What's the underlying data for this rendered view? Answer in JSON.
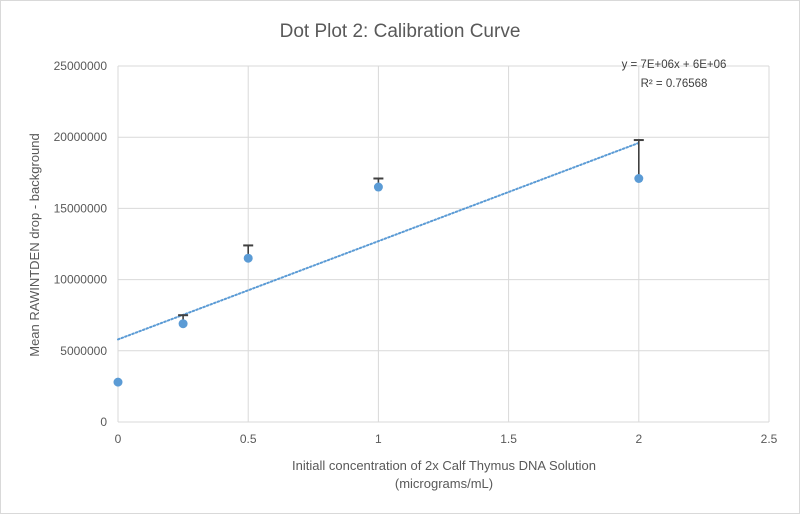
{
  "chart_data": {
    "type": "scatter",
    "title": "Dot Plot 2: Calibration Curve",
    "xlabel_line1": "Initiall concentration of 2x Calf Thymus DNA Solution",
    "xlabel_line2": "(micrograms/mL)",
    "ylabel": "Mean RAWINTDEN drop - background",
    "xlim": [
      0,
      2.5
    ],
    "ylim": [
      0,
      25000000
    ],
    "x_ticks": [
      0,
      0.5,
      1,
      1.5,
      2,
      2.5
    ],
    "x_tick_labels": [
      "0",
      "0.5",
      "1",
      "1.5",
      "2",
      "2.5"
    ],
    "y_ticks": [
      0,
      5000000,
      10000000,
      15000000,
      20000000,
      25000000
    ],
    "y_tick_labels": [
      "0",
      "5000000",
      "10000000",
      "15000000",
      "20000000",
      "25000000"
    ],
    "grid": true,
    "series": [
      {
        "name": "Mean RAWINTDEN",
        "color": "#5b9bd5",
        "points": [
          {
            "x": 0,
            "y": 2800000,
            "err": 0
          },
          {
            "x": 0.25,
            "y": 6900000,
            "err": 600000
          },
          {
            "x": 0.5,
            "y": 11500000,
            "err": 900000
          },
          {
            "x": 1,
            "y": 16500000,
            "err": 600000
          },
          {
            "x": 2,
            "y": 17100000,
            "err": 2700000
          }
        ]
      }
    ],
    "trendline": {
      "type": "linear",
      "slope": 6900000,
      "intercept": 5800000,
      "x_range": [
        0,
        2
      ],
      "color": "#5b9bd5",
      "equation": "y = 7E+06x + 6E+06",
      "r_squared": "R² = 0.76568"
    },
    "errorbar_color": "#404040"
  }
}
